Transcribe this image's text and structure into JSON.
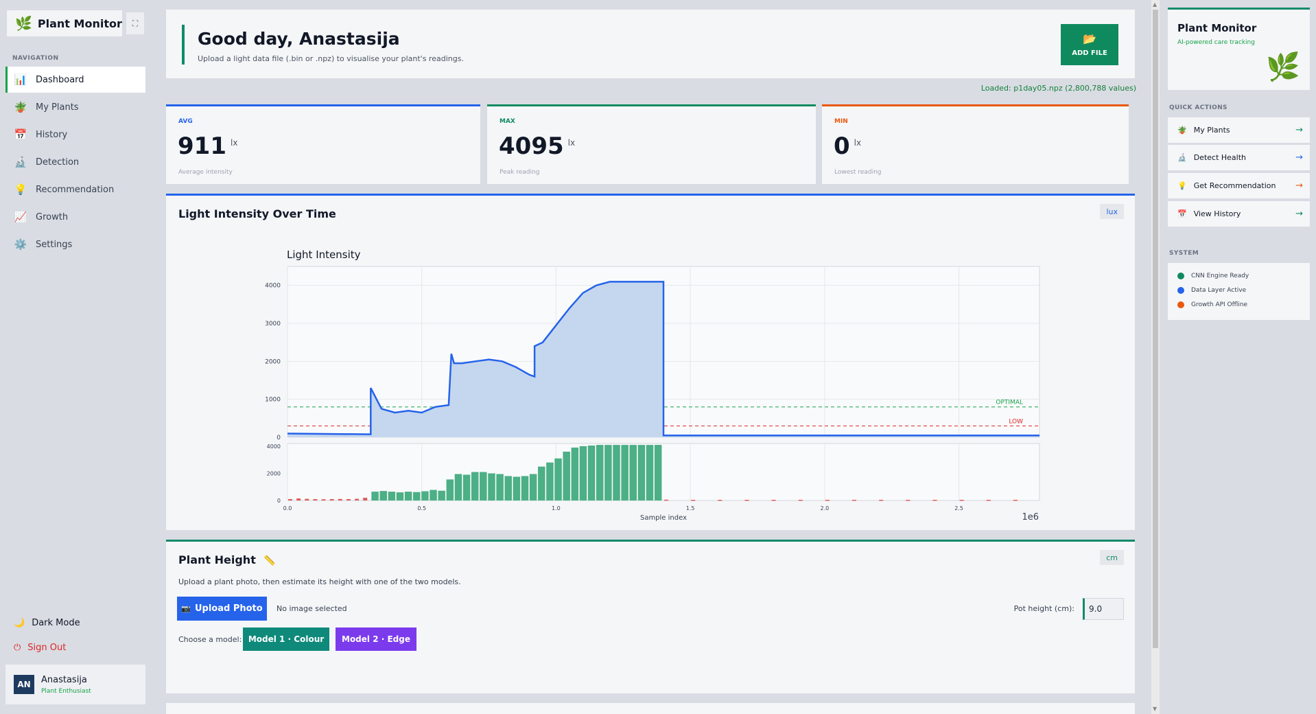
{
  "sidebar": {
    "brand": "Plant Monitor",
    "brand_icon": "🌿",
    "collapse_icon": "⛶",
    "nav_heading": "NAVIGATION",
    "items": [
      {
        "label": "Dashboard",
        "icon": "📊",
        "active": true
      },
      {
        "label": "My Plants",
        "icon": "🪴"
      },
      {
        "label": "History",
        "icon": "📅"
      },
      {
        "label": "Detection",
        "icon": "🔬"
      },
      {
        "label": "Recommendation",
        "icon": "💡"
      },
      {
        "label": "Growth",
        "icon": "📈"
      },
      {
        "label": "Settings",
        "icon": "⚙️"
      }
    ],
    "dark_mode": "Dark Mode",
    "dark_mode_icon": "🌙",
    "sign_out": "Sign Out",
    "sign_out_icon": "⏻",
    "user": {
      "initials": "AN",
      "name": "Anastasija",
      "role": "Plant Enthusiast"
    }
  },
  "header": {
    "greeting": "Good day, Anastasija",
    "subtitle": "Upload a light data file (.bin or .npz) to visualise your plant's readings.",
    "add_file_icon": "📂",
    "add_file_label": "ADD FILE",
    "loaded": "Loaded: p1day05.npz  (2,800,788 values)"
  },
  "stats": [
    {
      "label": "AVG",
      "value": "911",
      "unit": "lx",
      "caption": "Average intensity",
      "color": "#2563eb"
    },
    {
      "label": "MAX",
      "value": "4095",
      "unit": "lx",
      "caption": "Peak reading",
      "color": "#0f8a5f"
    },
    {
      "label": "MIN",
      "value": "0",
      "unit": "lx",
      "caption": "Lowest reading",
      "color": "#ea580c"
    }
  ],
  "light_card": {
    "title": "Light Intensity Over Time",
    "unit": "lux"
  },
  "chart_data": {
    "type": "area",
    "title": "Light Intensity",
    "xlabel": "Sample index",
    "x_multiplier": "1e6",
    "xlim": [
      0,
      2.8
    ],
    "ylim": [
      0,
      4500
    ],
    "yticks": [
      0,
      1000,
      2000,
      3000,
      4000
    ],
    "xticks": [
      "0.0",
      "0.5",
      "1.0",
      "1.5",
      "2.0",
      "2.5"
    ],
    "grid": true,
    "x": [
      0,
      0.31,
      0.31,
      0.35,
      0.4,
      0.45,
      0.5,
      0.55,
      0.6,
      0.61,
      0.62,
      0.65,
      0.7,
      0.75,
      0.8,
      0.85,
      0.9,
      0.92,
      0.92,
      0.95,
      1.0,
      1.05,
      1.1,
      1.15,
      1.2,
      1.25,
      1.3,
      1.35,
      1.4,
      1.4,
      1.6,
      2.0,
      2.5,
      2.8
    ],
    "y": [
      100,
      80,
      1300,
      750,
      650,
      700,
      650,
      800,
      850,
      2200,
      1950,
      1950,
      2000,
      2050,
      2000,
      1850,
      1650,
      1600,
      2400,
      2500,
      2950,
      3400,
      3800,
      4000,
      4095,
      4095,
      4095,
      4095,
      4095,
      50,
      50,
      50,
      50,
      50
    ],
    "thresholds": [
      {
        "label": "OPTIMAL",
        "value": 800,
        "color": "#16a34a"
      },
      {
        "label": "LOW",
        "value": 300,
        "color": "#dc2626"
      }
    ],
    "bars": {
      "ylim": [
        0,
        4200
      ],
      "yticks": [
        0,
        2000,
        4000
      ],
      "x": [
        0.0,
        0.031,
        0.062,
        0.093,
        0.124,
        0.155,
        0.186,
        0.217,
        0.248,
        0.279,
        0.31,
        0.341,
        0.372,
        0.403,
        0.434,
        0.465,
        0.496,
        0.527,
        0.558,
        0.589,
        0.62,
        0.651,
        0.682,
        0.713,
        0.744,
        0.775,
        0.806,
        0.837,
        0.868,
        0.899,
        0.93,
        0.961,
        0.992,
        1.023,
        1.054,
        1.085,
        1.116,
        1.147,
        1.178,
        1.209,
        1.24,
        1.271,
        1.302,
        1.333,
        1.364,
        1.4,
        1.5,
        1.6,
        1.7,
        1.8,
        1.9,
        2.0,
        2.1,
        2.2,
        2.3,
        2.4,
        2.5,
        2.6,
        2.7
      ],
      "values": [
        100,
        150,
        120,
        100,
        90,
        100,
        110,
        100,
        120,
        200,
        650,
        700,
        650,
        600,
        650,
        620,
        680,
        780,
        720,
        1550,
        1950,
        1900,
        2100,
        2100,
        2000,
        1950,
        1800,
        1750,
        1800,
        1950,
        2500,
        2800,
        3100,
        3600,
        3900,
        4000,
        4050,
        4095,
        4095,
        4095,
        4095,
        4095,
        4095,
        4095,
        4095,
        60,
        50,
        50,
        50,
        50,
        50,
        50,
        50,
        50,
        50,
        50,
        50,
        50,
        50
      ],
      "low_threshold": 300,
      "colors": {
        "ok": "#4caf86",
        "low": "#e05a5a"
      }
    }
  },
  "height_card": {
    "title": "Plant Height",
    "title_icon": "📏",
    "unit": "cm",
    "description": "Upload a plant photo, then estimate its height with one of the two models.",
    "upload_icon": "📷",
    "upload_label": "Upload Photo",
    "no_image": "No image selected",
    "pot_label": "Pot height (cm):",
    "pot_value": "9.0",
    "model_label": "Choose a model:",
    "model1": "Model 1 · Colour",
    "model2": "Model 2 · Edge",
    "model1_color": "#0f8a7a",
    "model2_color": "#7c3aed"
  },
  "right_panel": {
    "title": "Plant Monitor",
    "subtitle": "AI-powered care tracking",
    "leaf_icon": "🌿",
    "quick_heading": "QUICK ACTIONS",
    "quick_actions": [
      {
        "label": "My Plants",
        "icon": "🪴",
        "arrow": "→",
        "arrow_color": "#0f8a5f"
      },
      {
        "label": "Detect Health",
        "icon": "🔬",
        "arrow": "→",
        "arrow_color": "#2563eb"
      },
      {
        "label": "Get Recommendation",
        "icon": "💡",
        "arrow": "→",
        "arrow_color": "#ea580c"
      },
      {
        "label": "View History",
        "icon": "📅",
        "arrow": "→",
        "arrow_color": "#0f8a5f"
      }
    ],
    "system_heading": "SYSTEM",
    "system": [
      {
        "label": "CNN Engine Ready",
        "color": "#0f8a5f"
      },
      {
        "label": "Data Layer Active",
        "color": "#2563eb"
      },
      {
        "label": "Growth API Offline",
        "color": "#ea580c"
      }
    ]
  }
}
